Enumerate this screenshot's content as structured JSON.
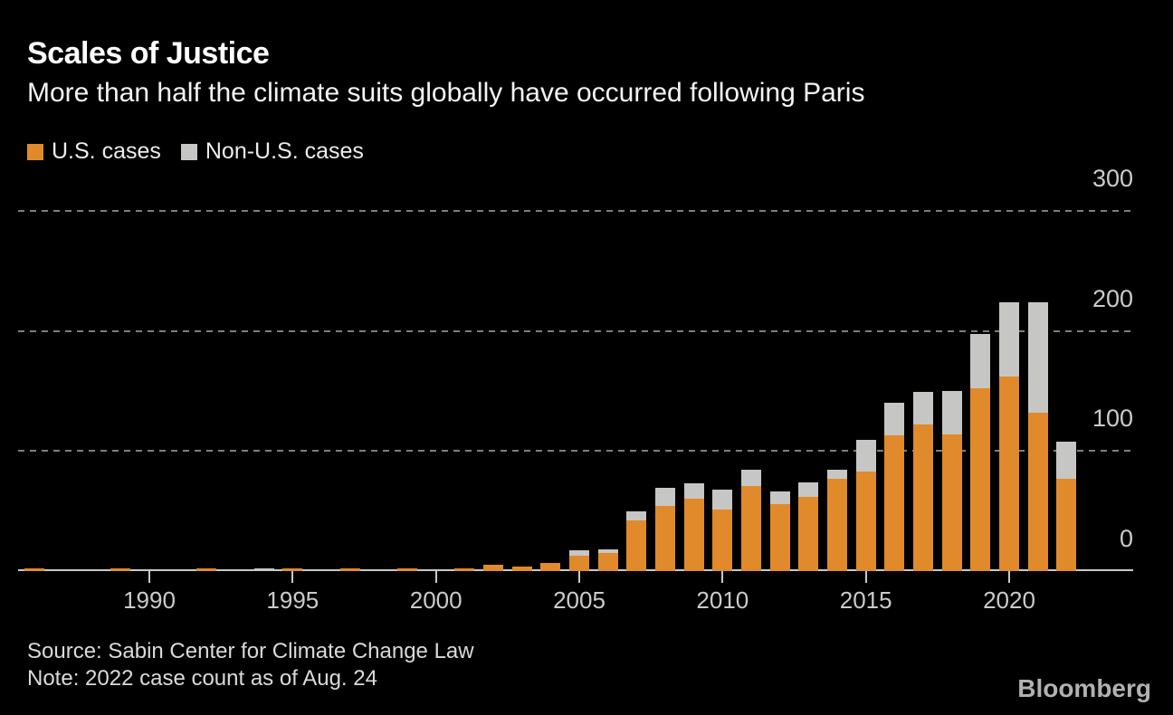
{
  "header": {
    "title": "Scales of Justice",
    "subtitle": "More than half the climate suits globally have occurred following Paris"
  },
  "chart_data": {
    "type": "bar",
    "stacked": true,
    "title": "Scales of Justice",
    "subtitle": "More than half the climate suits globally have occurred following Paris",
    "categories": [
      1986,
      1987,
      1988,
      1989,
      1990,
      1991,
      1992,
      1993,
      1994,
      1995,
      1996,
      1997,
      1998,
      1999,
      2000,
      2001,
      2002,
      2003,
      2004,
      2005,
      2006,
      2007,
      2008,
      2009,
      2010,
      2011,
      2012,
      2013,
      2014,
      2015,
      2016,
      2017,
      2018,
      2019,
      2020,
      2021,
      2022
    ],
    "series": [
      {
        "name": "U.S. cases",
        "color": "#E08A2B",
        "values": [
          2,
          0,
          0,
          2,
          0,
          0,
          2,
          0,
          0,
          2,
          0,
          2,
          0,
          2,
          0,
          2,
          5,
          4,
          7,
          13,
          15,
          42,
          54,
          60,
          51,
          71,
          56,
          62,
          77,
          83,
          113,
          122,
          114,
          152,
          162,
          132,
          77
        ]
      },
      {
        "name": "Non-U.S. cases",
        "color": "#C6C6C4",
        "values": [
          0,
          0,
          0,
          0,
          0,
          0,
          0,
          0,
          2,
          0,
          0,
          0,
          0,
          0,
          0,
          0,
          0,
          0,
          0,
          4,
          3,
          8,
          15,
          13,
          17,
          13,
          10,
          12,
          7,
          26,
          27,
          27,
          36,
          45,
          62,
          92,
          31
        ]
      }
    ],
    "x_ticks": [
      1990,
      1995,
      2000,
      2005,
      2010,
      2015,
      2020
    ],
    "y_ticks": [
      0,
      100,
      200,
      300
    ],
    "ylim": [
      0,
      300
    ],
    "xlim": [
      1985.5,
      2022.5
    ],
    "legend_position": "top-left",
    "grid": "horizontal-dashed",
    "y_axis_side": "right"
  },
  "footer": {
    "source": "Source: Sabin Center for Climate Change Law",
    "note": "Note: 2022 case count as of Aug. 24",
    "brand": "Bloomberg"
  }
}
